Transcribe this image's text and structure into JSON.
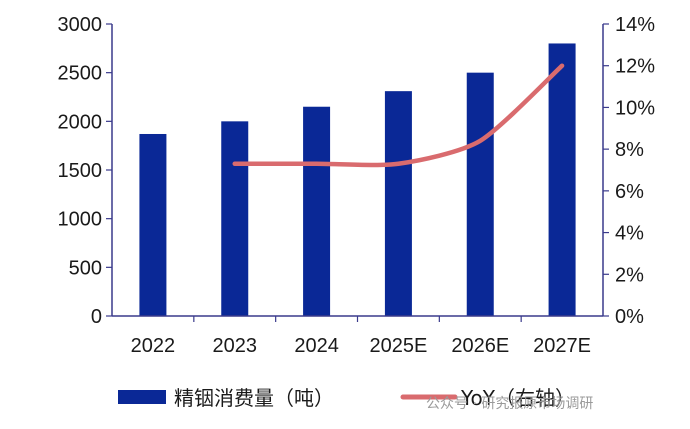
{
  "chart_data": {
    "type": "bar",
    "categories": [
      "2022",
      "2023",
      "2024",
      "2025E",
      "2026E",
      "2027E"
    ],
    "series": [
      {
        "name": "精铟消费量（吨）",
        "type": "bar",
        "axis": "left",
        "values": [
          1870,
          2000,
          2150,
          2310,
          2500,
          2800
        ]
      },
      {
        "name": "YoY（右轴）",
        "type": "line",
        "axis": "right",
        "values": [
          null,
          0.073,
          0.073,
          0.073,
          0.084,
          0.12
        ]
      }
    ],
    "y_left": {
      "lim": [
        0,
        3000
      ],
      "ticks": [
        0,
        500,
        1000,
        1500,
        2000,
        2500,
        3000
      ]
    },
    "y_right": {
      "lim": [
        0,
        0.14
      ],
      "ticks": [
        "0%",
        "2%",
        "4%",
        "6%",
        "8%",
        "10%",
        "12%",
        "14%"
      ]
    },
    "grid": false,
    "legend_position": "bottom",
    "colors": {
      "bar": "#0a2896",
      "line": "#d96b6e",
      "axis": "#3a3a8c"
    }
  },
  "watermark": "公众号 · 研究报原市场调研"
}
